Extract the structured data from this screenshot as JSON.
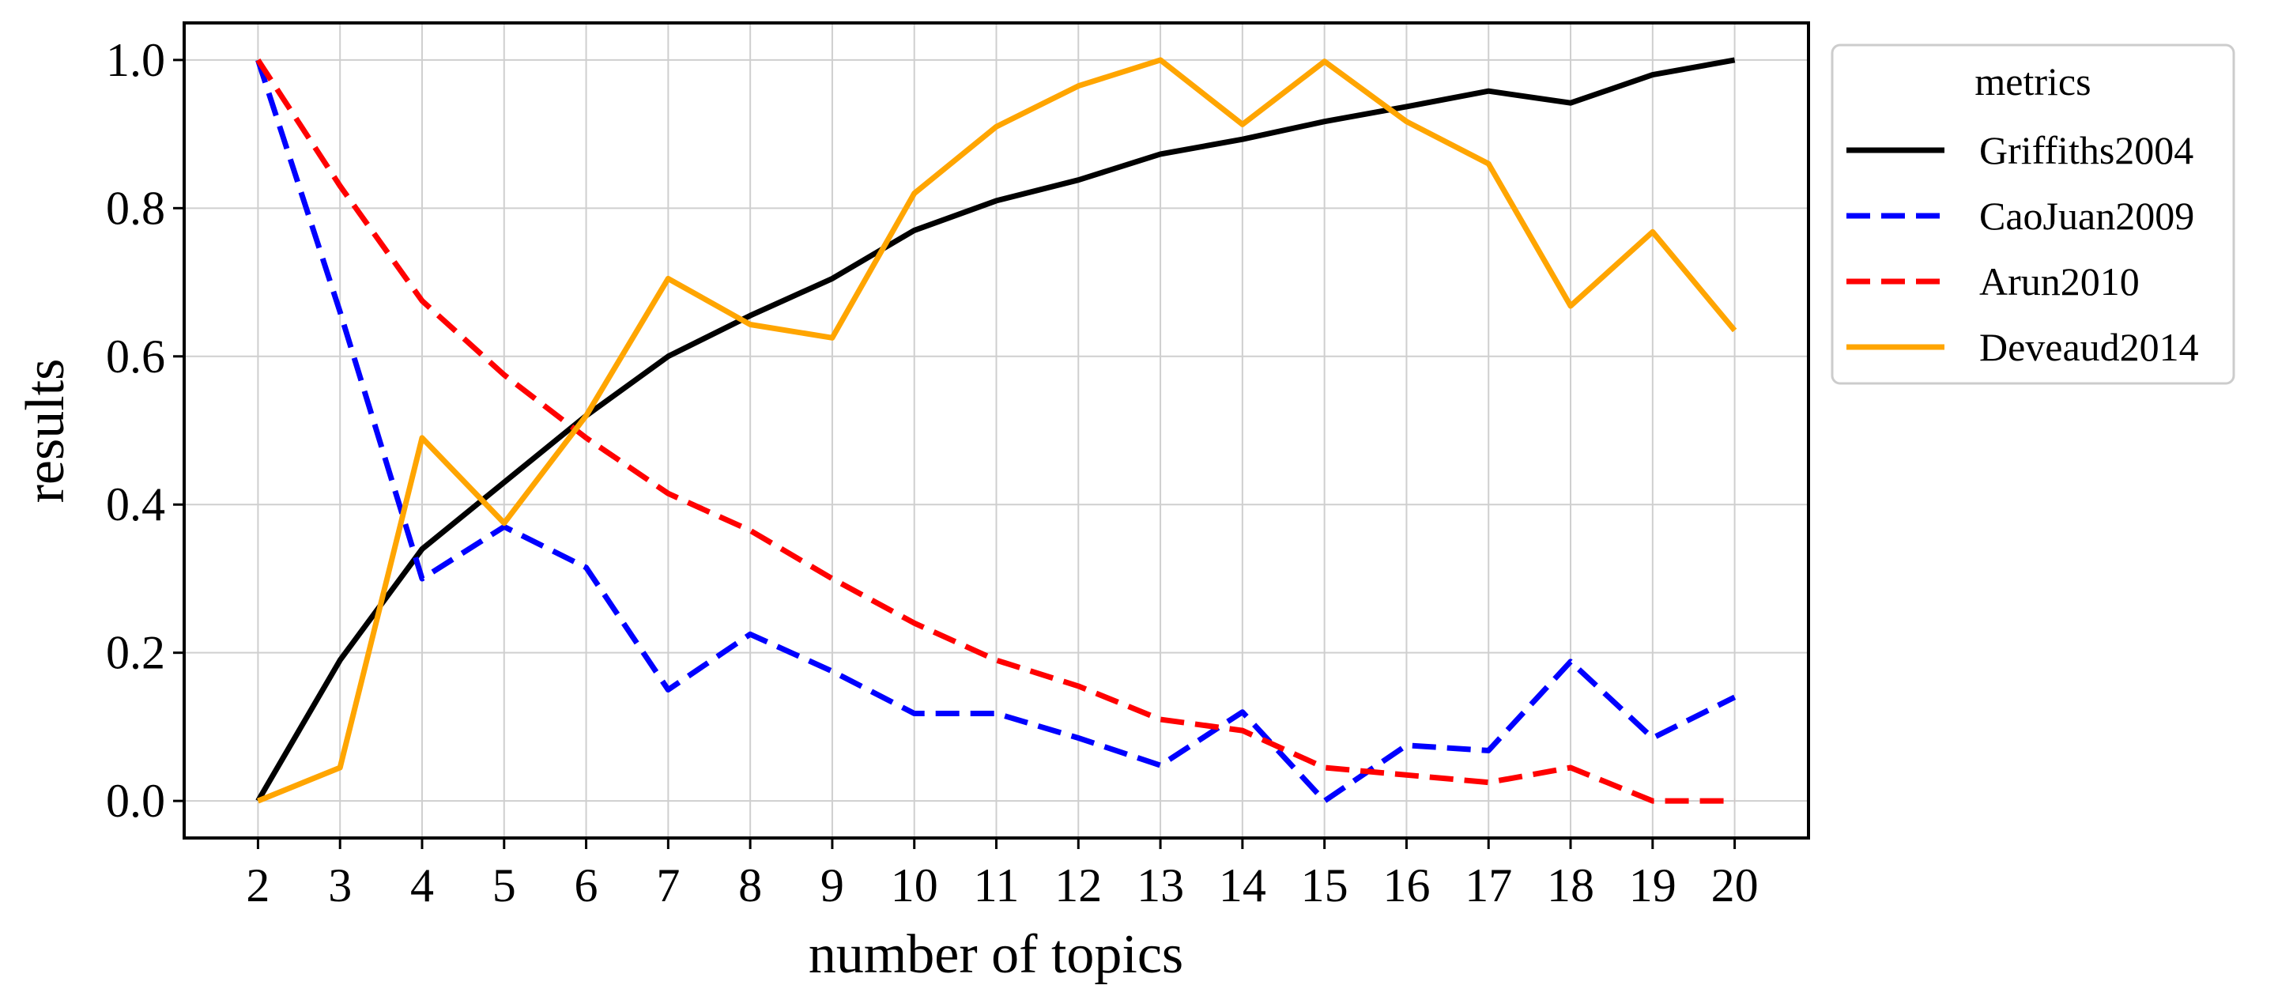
{
  "chart_data": {
    "type": "line",
    "title": "",
    "xlabel": "number of topics",
    "ylabel": "results",
    "x": [
      2,
      3,
      4,
      5,
      6,
      7,
      8,
      9,
      10,
      11,
      12,
      13,
      14,
      15,
      16,
      17,
      18,
      19,
      20
    ],
    "xticks": [
      "2",
      "3",
      "4",
      "5",
      "6",
      "7",
      "8",
      "9",
      "10",
      "11",
      "12",
      "13",
      "14",
      "15",
      "16",
      "17",
      "18",
      "19",
      "20"
    ],
    "yticks": [
      "0.0",
      "0.2",
      "0.4",
      "0.6",
      "0.8",
      "1.0"
    ],
    "xlim": [
      1.1,
      20.9
    ],
    "ylim": [
      -0.05,
      1.05
    ],
    "grid": true,
    "legend": {
      "title": "metrics",
      "placement": "outside-right-top"
    },
    "series": [
      {
        "name": "Griffiths2004",
        "color": "#000000",
        "style": "solid",
        "values": [
          0.0,
          0.19,
          0.34,
          0.43,
          0.52,
          0.6,
          0.655,
          0.705,
          0.77,
          0.81,
          0.838,
          0.873,
          0.893,
          0.917,
          0.937,
          0.958,
          0.942,
          0.98,
          1.0
        ]
      },
      {
        "name": "CaoJuan2009",
        "color": "#0000ff",
        "style": "dashed",
        "values": [
          1.0,
          0.66,
          0.3,
          0.37,
          0.315,
          0.15,
          0.225,
          0.175,
          0.118,
          0.118,
          0.085,
          0.048,
          0.12,
          0.0,
          0.075,
          0.068,
          0.188,
          0.085,
          0.14
        ]
      },
      {
        "name": "Arun2010",
        "color": "#ff0000",
        "style": "dashed",
        "values": [
          1.0,
          0.83,
          0.675,
          0.575,
          0.49,
          0.415,
          0.365,
          0.3,
          0.24,
          0.19,
          0.155,
          0.11,
          0.095,
          0.045,
          0.035,
          0.025,
          0.045,
          0.0,
          0.0
        ]
      },
      {
        "name": "Deveaud2014",
        "color": "#ffa500",
        "style": "solid",
        "values": [
          0.0,
          0.045,
          0.49,
          0.375,
          0.52,
          0.705,
          0.643,
          0.625,
          0.82,
          0.91,
          0.965,
          1.0,
          0.913,
          0.998,
          0.917,
          0.86,
          0.668,
          0.768,
          0.635
        ]
      }
    ]
  }
}
